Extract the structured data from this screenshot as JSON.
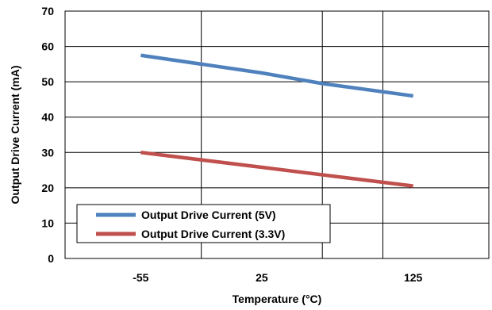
{
  "chart_data": {
    "type": "line",
    "xlabel": "Temperature (°C)",
    "ylabel": "Output Drive Current (mA)",
    "categories": [
      "-55",
      "25",
      "125"
    ],
    "x": [
      -55,
      25,
      125
    ],
    "xlim": [
      -105,
      175
    ],
    "xgrid": [
      -15,
      65,
      105
    ],
    "ylim": [
      0,
      70
    ],
    "yticks": [
      0,
      10,
      20,
      30,
      40,
      50,
      60,
      70
    ],
    "grid": true,
    "legend": "bottom-left",
    "series": [
      {
        "name": "Output Drive Current (5V)",
        "color": "#4f81bd",
        "x": [
          -55,
          25,
          65,
          125
        ],
        "y": [
          57.5,
          52.5,
          49.5,
          46
        ]
      },
      {
        "name": "Output Drive Current (3.3V)",
        "color": "#c0504d",
        "x": [
          -55,
          25,
          125
        ],
        "y": [
          30,
          25.8,
          20.5
        ]
      }
    ]
  }
}
